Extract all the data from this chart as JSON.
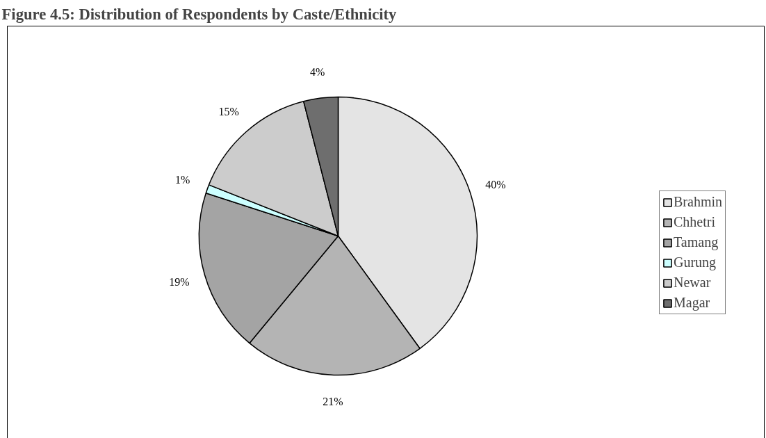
{
  "chart_data": {
    "type": "pie",
    "title": "Figure 4.5: Distribution of Respondents by Caste/Ethnicity",
    "categories": [
      "Brahmin",
      "Chhetri",
      "Tamang",
      "Gurung",
      "Newar",
      "Magar"
    ],
    "values": [
      40,
      21,
      19,
      1,
      15,
      4
    ],
    "colors": [
      "#e4e4e4",
      "#b4b4b4",
      "#a4a4a4",
      "#ccffff",
      "#cccccc",
      "#6e6e6e"
    ],
    "value_labels": [
      "40%",
      "21%",
      "19%",
      "1%",
      "15%",
      "4%"
    ],
    "legend": "right"
  }
}
